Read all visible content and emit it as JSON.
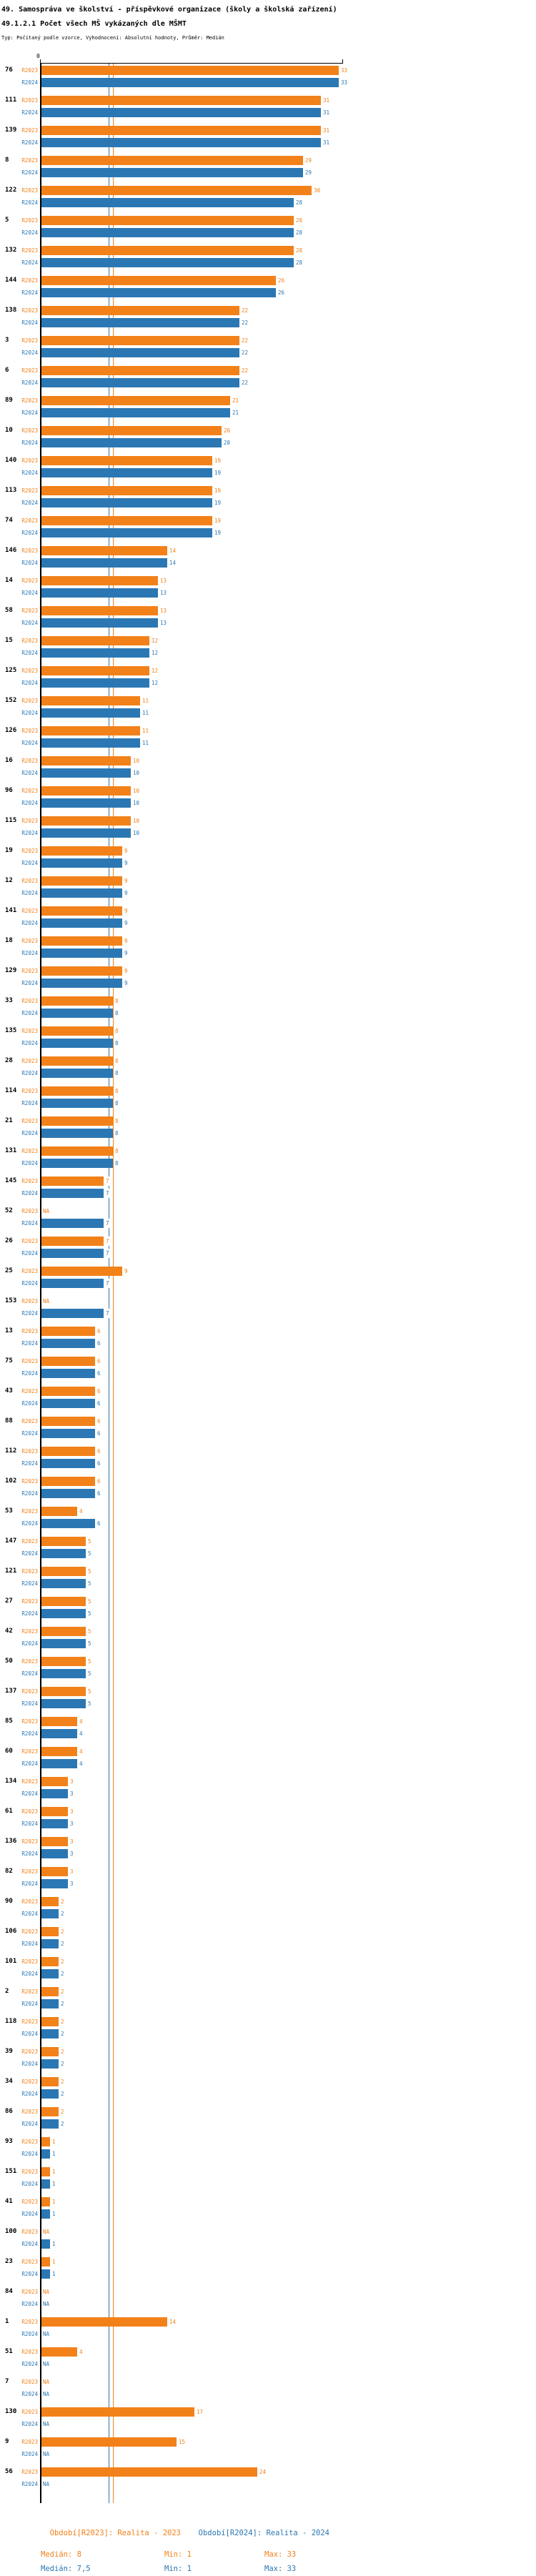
{
  "title": "49. Samospráva ve školství - příspěvkové organizace (školy a školská zařízení)",
  "subtitle": "49.1.2.1 Počet všech MŠ vykázaných dle MŠMT",
  "meta": "Typ: Počítaný podle vzorce, Vyhodnocení: Absolutní hodnoty, Průměr: Medián",
  "colors": {
    "r2023": "#F28119",
    "r2024": "#2B77B3"
  },
  "axis": {
    "zero_label": "0"
  },
  "series_labels": {
    "r2023": "R2023",
    "r2024": "R2024"
  },
  "na_label": "NA",
  "legend": {
    "r2023": "Období[R2023]: Realita - 2023",
    "r2024": "Období[R2024]: Realita - 2024"
  },
  "stats": {
    "r2023": {
      "median": "Medián: 8",
      "min": "Min: 1",
      "max": "Max: 33"
    },
    "r2024": {
      "median": "Medián: 7,5",
      "min": "Min: 1",
      "max": "Max: 33"
    }
  },
  "chart_data": {
    "type": "bar",
    "orientation": "horizontal",
    "title": "49.1.2.1 Počet všech MŠ vykázaných dle MŠMT",
    "xlim": [
      0,
      33.5
    ],
    "grid": false,
    "legend_position": "bottom",
    "medians": {
      "R2023": 8,
      "R2024": 7.5
    },
    "categories": [
      "76",
      "111",
      "139",
      "8",
      "122",
      "5",
      "132",
      "144",
      "138",
      "3",
      "6",
      "89",
      "10",
      "140",
      "113",
      "74",
      "146",
      "14",
      "58",
      "15",
      "125",
      "152",
      "126",
      "16",
      "96",
      "115",
      "19",
      "12",
      "141",
      "18",
      "129",
      "33",
      "135",
      "28",
      "114",
      "21",
      "131",
      "145",
      "52",
      "26",
      "25",
      "153",
      "13",
      "75",
      "43",
      "88",
      "112",
      "102",
      "53",
      "147",
      "121",
      "27",
      "42",
      "50",
      "137",
      "85",
      "60",
      "134",
      "61",
      "136",
      "82",
      "90",
      "106",
      "101",
      "2",
      "118",
      "39",
      "34",
      "86",
      "93",
      "151",
      "41",
      "100",
      "23",
      "84",
      "1",
      "51",
      "7",
      "130",
      "9",
      "56"
    ],
    "series": [
      {
        "name": "R2023",
        "values": [
          33,
          31,
          31,
          29,
          30,
          28,
          28,
          26,
          22,
          22,
          22,
          21,
          20,
          19,
          19,
          19,
          14,
          13,
          13,
          12,
          12,
          11,
          11,
          10,
          10,
          10,
          9,
          9,
          9,
          9,
          9,
          8,
          8,
          8,
          8,
          8,
          8,
          7,
          null,
          7,
          9,
          null,
          6,
          6,
          6,
          6,
          6,
          6,
          4,
          5,
          5,
          5,
          5,
          5,
          5,
          4,
          4,
          3,
          3,
          3,
          3,
          2,
          2,
          2,
          2,
          2,
          2,
          2,
          2,
          1,
          1,
          1,
          null,
          1,
          null,
          14,
          4,
          null,
          17,
          15,
          24
        ]
      },
      {
        "name": "R2024",
        "values": [
          33,
          31,
          31,
          29,
          28,
          28,
          28,
          26,
          22,
          22,
          22,
          21,
          20,
          19,
          19,
          19,
          14,
          13,
          13,
          12,
          12,
          11,
          11,
          10,
          10,
          10,
          9,
          9,
          9,
          9,
          9,
          8,
          8,
          8,
          8,
          8,
          8,
          7,
          7,
          7,
          7,
          7,
          6,
          6,
          6,
          6,
          6,
          6,
          6,
          5,
          5,
          5,
          5,
          5,
          5,
          4,
          4,
          3,
          3,
          3,
          3,
          2,
          2,
          2,
          2,
          2,
          2,
          2,
          2,
          1,
          1,
          1,
          1,
          1,
          null,
          null,
          null,
          null,
          null,
          null,
          null
        ]
      }
    ]
  }
}
